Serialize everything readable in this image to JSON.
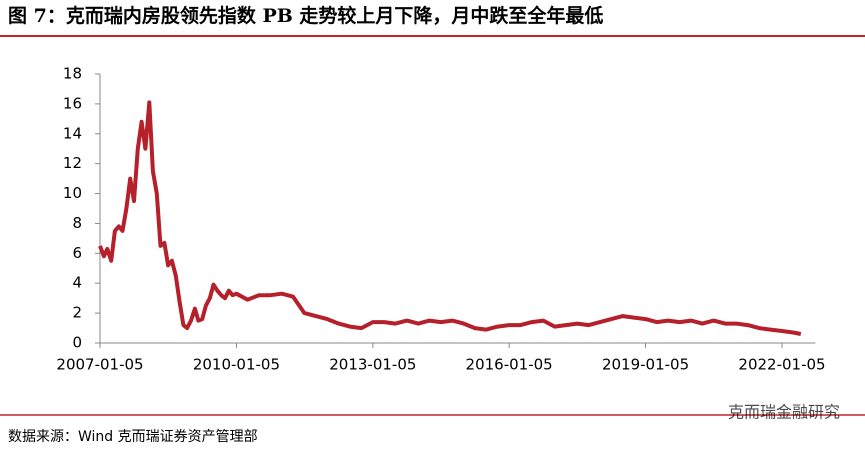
{
  "title": "图 7：克而瑞内房股领先指数 PB 走势较上月下降，月中跌至全年最低",
  "source": "数据来源：Wind  克而瑞证券资产管理部",
  "watermark": "克而瑞金融研究",
  "chart_data": {
    "type": "line",
    "x": [
      "2007-01-05",
      "2007-02-05",
      "2007-03-05",
      "2007-04-05",
      "2007-05-05",
      "2007-06-05",
      "2007-07-05",
      "2007-08-05",
      "2007-09-05",
      "2007-10-05",
      "2007-11-05",
      "2007-12-05",
      "2008-01-05",
      "2008-02-05",
      "2008-03-05",
      "2008-04-05",
      "2008-05-05",
      "2008-06-05",
      "2008-07-05",
      "2008-08-05",
      "2008-09-05",
      "2008-10-05",
      "2008-11-05",
      "2008-12-05",
      "2009-01-05",
      "2009-02-05",
      "2009-03-05",
      "2009-04-05",
      "2009-05-05",
      "2009-06-05",
      "2009-07-05",
      "2009-08-05",
      "2009-09-05",
      "2009-10-05",
      "2009-11-05",
      "2009-12-05",
      "2010-01-05",
      "2010-04-05",
      "2010-07-05",
      "2010-10-05",
      "2011-01-05",
      "2011-04-05",
      "2011-07-05",
      "2011-10-05",
      "2012-01-05",
      "2012-04-05",
      "2012-07-05",
      "2012-10-05",
      "2013-01-05",
      "2013-04-05",
      "2013-07-05",
      "2013-10-05",
      "2014-01-05",
      "2014-04-05",
      "2014-07-05",
      "2014-10-05",
      "2015-01-05",
      "2015-04-05",
      "2015-07-05",
      "2015-10-05",
      "2016-01-05",
      "2016-04-05",
      "2016-07-05",
      "2016-10-05",
      "2017-01-05",
      "2017-04-05",
      "2017-07-05",
      "2017-10-05",
      "2018-01-05",
      "2018-04-05",
      "2018-07-05",
      "2018-10-05",
      "2019-01-05",
      "2019-04-05",
      "2019-07-05",
      "2019-10-05",
      "2020-01-05",
      "2020-04-05",
      "2020-07-05",
      "2020-10-05",
      "2021-01-05",
      "2021-04-05",
      "2021-07-05",
      "2021-10-05",
      "2022-01-05",
      "2022-04-05",
      "2022-06-05"
    ],
    "series": [
      {
        "color": "#b5202a",
        "values": [
          6.5,
          5.8,
          6.3,
          5.5,
          7.5,
          7.8,
          7.5,
          9,
          11,
          9.5,
          13,
          14.8,
          13,
          16.1,
          11.5,
          10,
          6.5,
          6.7,
          5.2,
          5.5,
          4.5,
          2.8,
          1.2,
          1.0,
          1.5,
          2.3,
          1.5,
          1.6,
          2.5,
          3.0,
          3.9,
          3.5,
          3.2,
          3.0,
          3.5,
          3.2,
          3.3,
          2.9,
          3.2,
          3.2,
          3.3,
          3.1,
          2.0,
          1.8,
          1.6,
          1.3,
          1.1,
          1.0,
          1.4,
          1.4,
          1.3,
          1.5,
          1.3,
          1.5,
          1.4,
          1.5,
          1.3,
          1.0,
          0.9,
          1.1,
          1.2,
          1.2,
          1.4,
          1.5,
          1.1,
          1.2,
          1.3,
          1.2,
          1.4,
          1.6,
          1.8,
          1.7,
          1.6,
          1.4,
          1.5,
          1.4,
          1.5,
          1.3,
          1.5,
          1.3,
          1.3,
          1.2,
          1.0,
          0.9,
          0.8,
          0.7,
          0.6
        ]
      }
    ],
    "xlim": [
      "2007-01-05",
      "2022-09-30"
    ],
    "xticks": [
      "2007-01-05",
      "2010-01-05",
      "2013-01-05",
      "2016-01-05",
      "2019-01-05",
      "2022-01-05"
    ],
    "ylim": [
      0,
      18
    ],
    "yticks": [
      0,
      2,
      4,
      6,
      8,
      10,
      12,
      14,
      16,
      18
    ],
    "grid": false
  }
}
